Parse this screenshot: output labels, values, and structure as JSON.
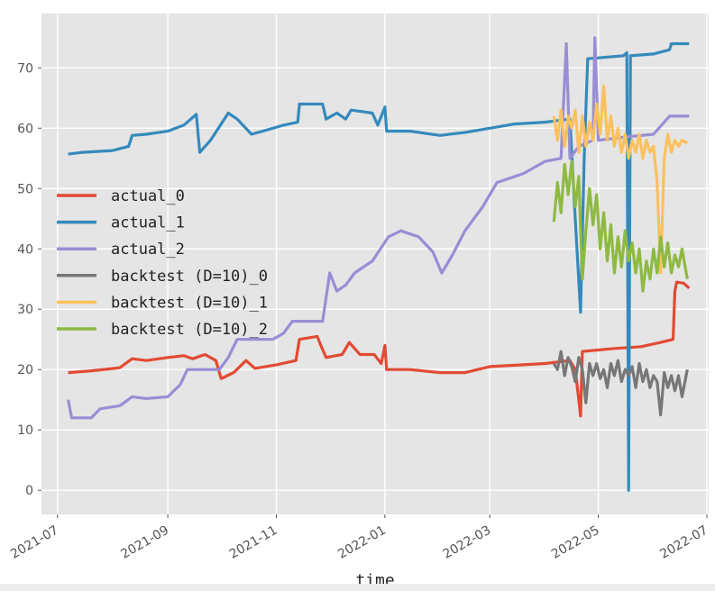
{
  "chart_data": {
    "type": "line",
    "title": "",
    "xlabel": "time",
    "ylabel": "",
    "xlim": [
      "2021-06-22",
      "2022-07-02"
    ],
    "ylim": [
      -4,
      79
    ],
    "grid": true,
    "legend_position": "center-left",
    "x_ticks": [
      {
        "date": "2021-07-01",
        "label": "2021-07"
      },
      {
        "date": "2021-09-01",
        "label": "2021-09"
      },
      {
        "date": "2021-11-01",
        "label": "2021-11"
      },
      {
        "date": "2022-01-01",
        "label": "2022-01"
      },
      {
        "date": "2022-03-01",
        "label": "2022-03"
      },
      {
        "date": "2022-05-01",
        "label": "2022-05"
      },
      {
        "date": "2022-07-01",
        "label": "2022-07"
      }
    ],
    "y_ticks": [
      0,
      10,
      20,
      30,
      40,
      50,
      60,
      70
    ],
    "series": [
      {
        "name": "actual_0",
        "color": "#e24a33",
        "points": [
          [
            "2021-07-07",
            19.5
          ],
          [
            "2021-07-20",
            19.8
          ],
          [
            "2021-08-05",
            20.3
          ],
          [
            "2021-08-12",
            21.8
          ],
          [
            "2021-08-20",
            21.5
          ],
          [
            "2021-09-01",
            22
          ],
          [
            "2021-09-10",
            22.3
          ],
          [
            "2021-09-15",
            21.8
          ],
          [
            "2021-09-22",
            22.5
          ],
          [
            "2021-09-28",
            21.5
          ],
          [
            "2021-10-01",
            18.5
          ],
          [
            "2021-10-08",
            19.5
          ],
          [
            "2021-10-15",
            21.5
          ],
          [
            "2021-10-20",
            20.2
          ],
          [
            "2021-11-01",
            20.8
          ],
          [
            "2021-11-12",
            21.5
          ],
          [
            "2021-11-14",
            25
          ],
          [
            "2021-11-24",
            25.5
          ],
          [
            "2021-11-26",
            24
          ],
          [
            "2021-11-29",
            22
          ],
          [
            "2021-12-08",
            22.5
          ],
          [
            "2021-12-12",
            24.5
          ],
          [
            "2021-12-18",
            22.5
          ],
          [
            "2021-12-26",
            22.5
          ],
          [
            "2021-12-30",
            21
          ],
          [
            "2022-01-01",
            24
          ],
          [
            "2022-01-02",
            20
          ],
          [
            "2022-01-15",
            20
          ],
          [
            "2022-02-01",
            19.5
          ],
          [
            "2022-02-15",
            19.5
          ],
          [
            "2022-03-01",
            20.5
          ],
          [
            "2022-03-20",
            20.8
          ],
          [
            "2022-04-01",
            21
          ],
          [
            "2022-04-15",
            21.5
          ],
          [
            "2022-04-18",
            20
          ],
          [
            "2022-04-20",
            15
          ],
          [
            "2022-04-21",
            12.3
          ],
          [
            "2022-04-22",
            23
          ],
          [
            "2022-05-10",
            23.5
          ],
          [
            "2022-05-25",
            23.8
          ],
          [
            "2022-06-05",
            24.5
          ],
          [
            "2022-06-12",
            25
          ],
          [
            "2022-06-13",
            33
          ],
          [
            "2022-06-14",
            34.5
          ],
          [
            "2022-06-18",
            34.3
          ],
          [
            "2022-06-21",
            33.5
          ]
        ]
      },
      {
        "name": "actual_1",
        "color": "#348abd",
        "points": [
          [
            "2021-07-07",
            55.7
          ],
          [
            "2021-07-15",
            56
          ],
          [
            "2021-08-01",
            56.3
          ],
          [
            "2021-08-10",
            57
          ],
          [
            "2021-08-12",
            58.8
          ],
          [
            "2021-08-20",
            59
          ],
          [
            "2021-09-01",
            59.5
          ],
          [
            "2021-09-10",
            60.5
          ],
          [
            "2021-09-17",
            62.3
          ],
          [
            "2021-09-19",
            56
          ],
          [
            "2021-09-25",
            58
          ],
          [
            "2021-10-05",
            62.5
          ],
          [
            "2021-10-10",
            61.5
          ],
          [
            "2021-10-18",
            59
          ],
          [
            "2021-10-28",
            59.8
          ],
          [
            "2021-11-05",
            60.5
          ],
          [
            "2021-11-13",
            61
          ],
          [
            "2021-11-14",
            64
          ],
          [
            "2021-11-27",
            64
          ],
          [
            "2021-11-29",
            61.5
          ],
          [
            "2021-12-05",
            62.5
          ],
          [
            "2021-12-10",
            61.5
          ],
          [
            "2021-12-13",
            63
          ],
          [
            "2021-12-25",
            62.5
          ],
          [
            "2021-12-28",
            60.5
          ],
          [
            "2022-01-01",
            63.5
          ],
          [
            "2022-01-02",
            59.5
          ],
          [
            "2022-01-15",
            59.5
          ],
          [
            "2022-02-01",
            58.8
          ],
          [
            "2022-02-15",
            59.3
          ],
          [
            "2022-03-01",
            60
          ],
          [
            "2022-03-15",
            60.7
          ],
          [
            "2022-04-01",
            61
          ],
          [
            "2022-04-15",
            61.5
          ],
          [
            "2022-04-18",
            45
          ],
          [
            "2022-04-21",
            29.5
          ],
          [
            "2022-04-23",
            55
          ],
          [
            "2022-04-25",
            71.5
          ],
          [
            "2022-05-15",
            72
          ],
          [
            "2022-05-17",
            72.5
          ],
          [
            "2022-05-18",
            0
          ],
          [
            "2022-05-19",
            72
          ],
          [
            "2022-06-01",
            72.3
          ],
          [
            "2022-06-10",
            73
          ],
          [
            "2022-06-11",
            74
          ],
          [
            "2022-06-21",
            74
          ]
        ]
      },
      {
        "name": "actual_2",
        "color": "#988ed5",
        "points": [
          [
            "2021-07-07",
            15
          ],
          [
            "2021-07-09",
            12
          ],
          [
            "2021-07-20",
            12
          ],
          [
            "2021-07-25",
            13.5
          ],
          [
            "2021-08-05",
            14
          ],
          [
            "2021-08-12",
            15.5
          ],
          [
            "2021-08-20",
            15.2
          ],
          [
            "2021-09-01",
            15.5
          ],
          [
            "2021-09-08",
            17.5
          ],
          [
            "2021-09-12",
            20
          ],
          [
            "2021-09-30",
            20
          ],
          [
            "2021-10-05",
            22
          ],
          [
            "2021-10-10",
            25
          ],
          [
            "2021-10-30",
            25
          ],
          [
            "2021-11-05",
            26
          ],
          [
            "2021-11-10",
            28
          ],
          [
            "2021-11-27",
            28
          ],
          [
            "2021-12-01",
            36
          ],
          [
            "2021-12-05",
            33
          ],
          [
            "2021-12-10",
            34
          ],
          [
            "2021-12-15",
            36
          ],
          [
            "2021-12-25",
            38
          ],
          [
            "2022-01-03",
            42
          ],
          [
            "2022-01-10",
            43
          ],
          [
            "2022-01-20",
            42
          ],
          [
            "2022-01-28",
            39.5
          ],
          [
            "2022-02-02",
            36
          ],
          [
            "2022-02-08",
            39
          ],
          [
            "2022-02-15",
            43
          ],
          [
            "2022-02-25",
            47
          ],
          [
            "2022-03-05",
            51
          ],
          [
            "2022-03-20",
            52.5
          ],
          [
            "2022-04-01",
            54.5
          ],
          [
            "2022-04-10",
            55
          ],
          [
            "2022-04-13",
            74
          ],
          [
            "2022-04-15",
            55
          ],
          [
            "2022-04-20",
            57
          ],
          [
            "2022-04-28",
            58
          ],
          [
            "2022-04-29",
            75
          ],
          [
            "2022-05-01",
            58
          ],
          [
            "2022-05-15",
            58.5
          ],
          [
            "2022-06-01",
            59
          ],
          [
            "2022-06-10",
            62
          ],
          [
            "2022-06-21",
            62
          ]
        ]
      },
      {
        "name": "backtest (D=10)_0",
        "color": "#777777",
        "points": [
          [
            "2022-04-06",
            21
          ],
          [
            "2022-04-08",
            20
          ],
          [
            "2022-04-10",
            23
          ],
          [
            "2022-04-12",
            19
          ],
          [
            "2022-04-14",
            22
          ],
          [
            "2022-04-16",
            20.5
          ],
          [
            "2022-04-18",
            18
          ],
          [
            "2022-04-20",
            22
          ],
          [
            "2022-04-22",
            20
          ],
          [
            "2022-04-24",
            14.5
          ],
          [
            "2022-04-26",
            21
          ],
          [
            "2022-04-28",
            19
          ],
          [
            "2022-04-30",
            21
          ],
          [
            "2022-05-02",
            18.5
          ],
          [
            "2022-05-04",
            20
          ],
          [
            "2022-05-06",
            17
          ],
          [
            "2022-05-08",
            21
          ],
          [
            "2022-05-10",
            19
          ],
          [
            "2022-05-12",
            21.5
          ],
          [
            "2022-05-14",
            18
          ],
          [
            "2022-05-16",
            20
          ],
          [
            "2022-05-18",
            19
          ],
          [
            "2022-05-20",
            20.5
          ],
          [
            "2022-05-22",
            17
          ],
          [
            "2022-05-24",
            21
          ],
          [
            "2022-05-26",
            18
          ],
          [
            "2022-05-28",
            20
          ],
          [
            "2022-05-30",
            17
          ],
          [
            "2022-06-01",
            19
          ],
          [
            "2022-06-03",
            18
          ],
          [
            "2022-06-05",
            12.5
          ],
          [
            "2022-06-07",
            19.5
          ],
          [
            "2022-06-09",
            17
          ],
          [
            "2022-06-11",
            19
          ],
          [
            "2022-06-13",
            16.5
          ],
          [
            "2022-06-15",
            19
          ],
          [
            "2022-06-17",
            15.5
          ],
          [
            "2022-06-20",
            20
          ]
        ]
      },
      {
        "name": "backtest (D=10)_1",
        "color": "#fbc15e",
        "points": [
          [
            "2022-04-06",
            62
          ],
          [
            "2022-04-08",
            58
          ],
          [
            "2022-04-10",
            63
          ],
          [
            "2022-04-12",
            57
          ],
          [
            "2022-04-14",
            62
          ],
          [
            "2022-04-16",
            60
          ],
          [
            "2022-04-18",
            63
          ],
          [
            "2022-04-20",
            56
          ],
          [
            "2022-04-22",
            62
          ],
          [
            "2022-04-24",
            57
          ],
          [
            "2022-04-26",
            61
          ],
          [
            "2022-04-28",
            58
          ],
          [
            "2022-04-30",
            64
          ],
          [
            "2022-05-02",
            59
          ],
          [
            "2022-05-04",
            67
          ],
          [
            "2022-05-06",
            58
          ],
          [
            "2022-05-08",
            62
          ],
          [
            "2022-05-10",
            57
          ],
          [
            "2022-05-12",
            60
          ],
          [
            "2022-05-14",
            56
          ],
          [
            "2022-05-16",
            59
          ],
          [
            "2022-05-18",
            55
          ],
          [
            "2022-05-20",
            58
          ],
          [
            "2022-05-22",
            56
          ],
          [
            "2022-05-24",
            59
          ],
          [
            "2022-05-26",
            55
          ],
          [
            "2022-05-28",
            58
          ],
          [
            "2022-05-30",
            56
          ],
          [
            "2022-06-01",
            57
          ],
          [
            "2022-06-03",
            51
          ],
          [
            "2022-06-05",
            36
          ],
          [
            "2022-06-07",
            55
          ],
          [
            "2022-06-09",
            59
          ],
          [
            "2022-06-11",
            56
          ],
          [
            "2022-06-13",
            58
          ],
          [
            "2022-06-15",
            57
          ],
          [
            "2022-06-17",
            58
          ],
          [
            "2022-06-20",
            57.5
          ]
        ]
      },
      {
        "name": "backtest (D=10)_2",
        "color": "#8eba42",
        "points": [
          [
            "2022-04-06",
            44.5
          ],
          [
            "2022-04-08",
            51
          ],
          [
            "2022-04-10",
            46
          ],
          [
            "2022-04-12",
            54
          ],
          [
            "2022-04-14",
            49
          ],
          [
            "2022-04-16",
            54.5
          ],
          [
            "2022-04-18",
            47
          ],
          [
            "2022-04-20",
            52
          ],
          [
            "2022-04-22",
            35
          ],
          [
            "2022-04-24",
            43
          ],
          [
            "2022-04-26",
            50
          ],
          [
            "2022-04-28",
            44
          ],
          [
            "2022-04-30",
            49
          ],
          [
            "2022-05-02",
            40
          ],
          [
            "2022-05-04",
            46
          ],
          [
            "2022-05-06",
            38
          ],
          [
            "2022-05-08",
            44
          ],
          [
            "2022-05-10",
            36
          ],
          [
            "2022-05-12",
            42
          ],
          [
            "2022-05-14",
            37
          ],
          [
            "2022-05-16",
            43
          ],
          [
            "2022-05-18",
            38
          ],
          [
            "2022-05-20",
            41
          ],
          [
            "2022-05-22",
            36
          ],
          [
            "2022-05-24",
            40
          ],
          [
            "2022-05-26",
            33
          ],
          [
            "2022-05-28",
            38
          ],
          [
            "2022-05-30",
            35
          ],
          [
            "2022-06-01",
            40
          ],
          [
            "2022-06-03",
            36
          ],
          [
            "2022-06-05",
            42
          ],
          [
            "2022-06-07",
            37
          ],
          [
            "2022-06-09",
            41
          ],
          [
            "2022-06-11",
            36
          ],
          [
            "2022-06-13",
            39
          ],
          [
            "2022-06-15",
            37
          ],
          [
            "2022-06-17",
            40
          ],
          [
            "2022-06-20",
            35
          ]
        ]
      }
    ]
  }
}
